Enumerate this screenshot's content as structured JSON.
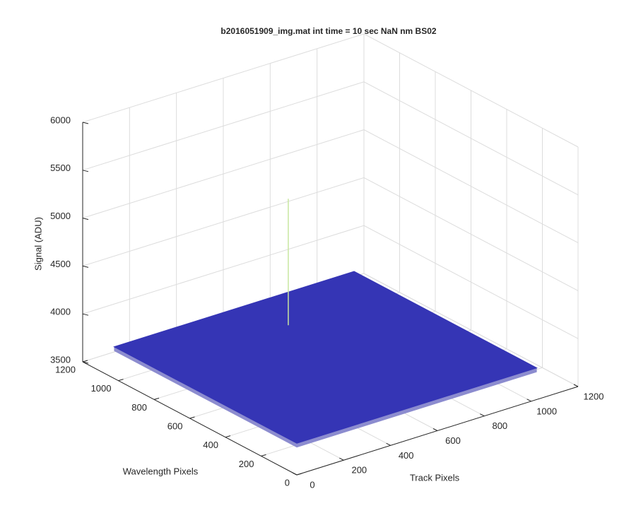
{
  "chart_data": {
    "type": "surface3d",
    "title": "b2016051909_img.mat int time = 10 sec  NaN nm BS02",
    "xlabel": "Track Pixels",
    "ylabel": "Wavelength Pixels",
    "zlabel": "Signal (ADU)",
    "x": [
      0,
      1024
    ],
    "y": [
      0,
      1024
    ],
    "z": [
      [
        3830,
        3830
      ],
      [
        3830,
        3830
      ]
    ],
    "peaks": [
      {
        "x": 575,
        "y": 803,
        "z": 5150
      }
    ],
    "color": "#3535b5",
    "xlim": [
      0,
      1200
    ],
    "ylim": [
      0,
      1200
    ],
    "zlim": [
      3500,
      6000
    ],
    "xticks": [
      0,
      200,
      400,
      600,
      800,
      1000,
      1200
    ],
    "yticks": [
      0,
      200,
      400,
      600,
      800,
      1000,
      1200
    ],
    "zticks": [
      3500,
      4000,
      4500,
      5000,
      5500,
      6000
    ],
    "grid": true
  }
}
